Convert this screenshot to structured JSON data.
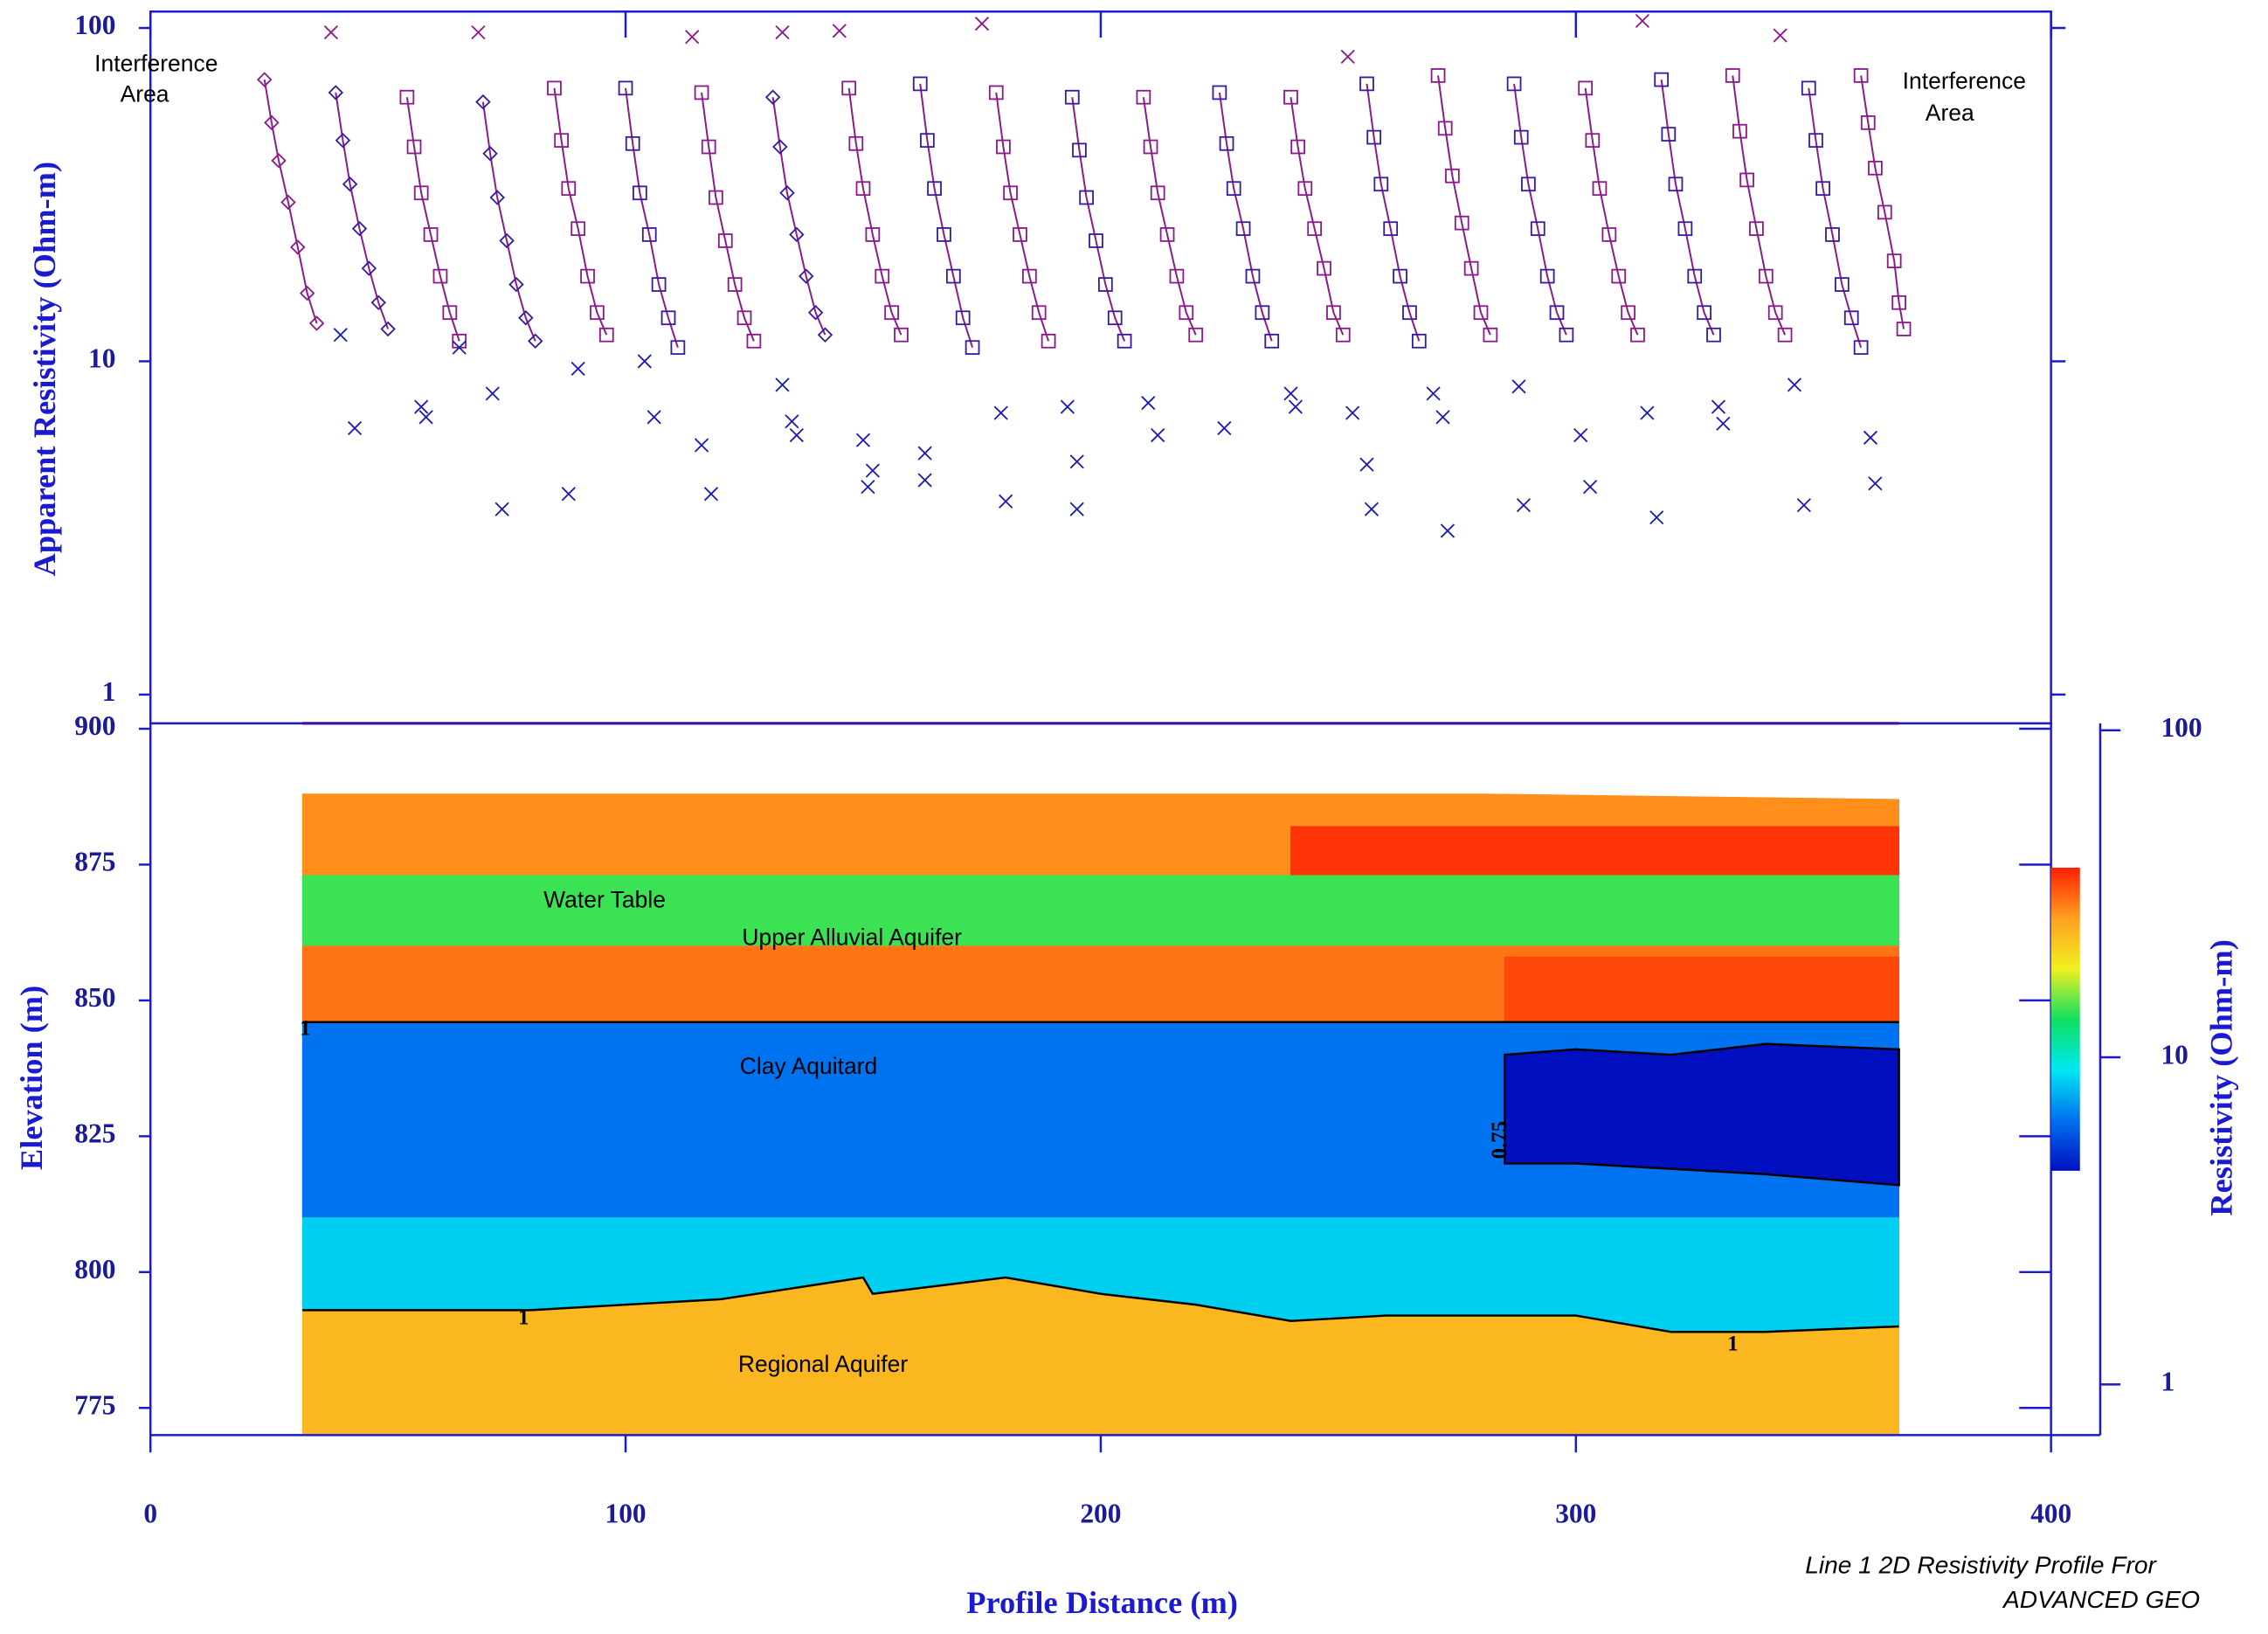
{
  "chart_data": [
    {
      "type": "scatter",
      "y_label": "Apparent Resistivity (Ohm-m)",
      "log_y": true,
      "xlim": [
        0,
        400
      ],
      "xticks": [
        0,
        100,
        200,
        300,
        400
      ],
      "ylim": [
        0.82,
        112
      ],
      "yticks": [
        1,
        10,
        100
      ],
      "annotations": [
        [
          "Interference",
          "Area"
        ],
        [
          "Interference",
          "Area"
        ]
      ],
      "line_color": "#8b1a8b",
      "series": [
        {
          "marker": "diamond",
          "color": "#8b1a8b",
          "x": [
            24,
            25.5,
            27,
            29,
            31,
            33,
            35
          ],
          "y": [
            70,
            52,
            40,
            30,
            22,
            16,
            13
          ]
        },
        {
          "marker": "diamond",
          "color": "#3a1aa0",
          "x": [
            39,
            40.5,
            42,
            44,
            46,
            48,
            50
          ],
          "y": [
            64,
            46,
            34,
            25,
            19,
            15,
            12.5
          ]
        },
        {
          "marker": "square",
          "color": "#8b1a8b",
          "x": [
            54,
            55.5,
            57,
            59,
            61,
            63,
            65
          ],
          "y": [
            62,
            44,
            32,
            24,
            18,
            14,
            11.5
          ]
        },
        {
          "marker": "diamond",
          "color": "#3a1aa0",
          "x": [
            70,
            71.5,
            73,
            75,
            77,
            79,
            81
          ],
          "y": [
            60,
            42,
            31,
            23,
            17,
            13.5,
            11.5
          ]
        },
        {
          "marker": "square",
          "color": "#8b1a8b",
          "x": [
            85,
            86.5,
            88,
            90,
            92,
            94,
            96
          ],
          "y": [
            66,
            46,
            33,
            25,
            18,
            14,
            12
          ]
        },
        {
          "marker": "square",
          "color": "#3a1aa0",
          "x": [
            100,
            101.5,
            103,
            105,
            107,
            109,
            111
          ],
          "y": [
            66,
            45,
            32,
            24,
            17,
            13.5,
            11
          ]
        },
        {
          "marker": "square",
          "color": "#8b1a8b",
          "x": [
            116,
            117.5,
            119,
            121,
            123,
            125,
            127
          ],
          "y": [
            64,
            44,
            31,
            23,
            17,
            13.5,
            11.5
          ]
        },
        {
          "marker": "diamond",
          "color": "#3a1aa0",
          "x": [
            131,
            132.5,
            134,
            136,
            138,
            140,
            142
          ],
          "y": [
            62,
            44,
            32,
            24,
            18,
            14,
            12
          ]
        },
        {
          "marker": "square",
          "color": "#8b1a8b",
          "x": [
            147,
            148.5,
            150,
            152,
            154,
            156,
            158
          ],
          "y": [
            66,
            45,
            33,
            24,
            18,
            14,
            12
          ]
        },
        {
          "marker": "square",
          "color": "#3a1aa0",
          "x": [
            162,
            163.5,
            165,
            167,
            169,
            171,
            173
          ],
          "y": [
            68,
            46,
            33,
            24,
            18,
            13.5,
            11
          ]
        },
        {
          "marker": "square",
          "color": "#8b1a8b",
          "x": [
            178,
            179.5,
            181,
            183,
            185,
            187,
            189
          ],
          "y": [
            64,
            44,
            32,
            24,
            18,
            14,
            11.5
          ]
        },
        {
          "marker": "square",
          "color": "#3a1aa0",
          "x": [
            194,
            195.5,
            197,
            199,
            201,
            203,
            205
          ],
          "y": [
            62,
            43,
            31,
            23,
            17,
            13.5,
            11.5
          ]
        },
        {
          "marker": "square",
          "color": "#8b1a8b",
          "x": [
            209,
            210.5,
            212,
            214,
            216,
            218,
            220
          ],
          "y": [
            62,
            44,
            32,
            24,
            18,
            14,
            12
          ]
        },
        {
          "marker": "square",
          "color": "#3a1aa0",
          "x": [
            225,
            226.5,
            228,
            230,
            232,
            234,
            236
          ],
          "y": [
            64,
            45,
            33,
            25,
            18,
            14,
            11.5
          ]
        },
        {
          "marker": "square",
          "color": "#8b1a8b",
          "x": [
            240,
            241.5,
            243,
            245,
            247,
            249,
            251
          ],
          "y": [
            62,
            44,
            33,
            25,
            19,
            14,
            12
          ]
        },
        {
          "marker": "square",
          "color": "#3a1aa0",
          "x": [
            256,
            257.5,
            259,
            261,
            263,
            265,
            267
          ],
          "y": [
            68,
            47,
            34,
            25,
            18,
            14,
            11.5
          ]
        },
        {
          "marker": "square",
          "color": "#8b1a8b",
          "x": [
            271,
            272.5,
            274,
            276,
            278,
            280,
            282
          ],
          "y": [
            72,
            50,
            36,
            26,
            19,
            14,
            12
          ]
        },
        {
          "marker": "square",
          "color": "#3a1aa0",
          "x": [
            287,
            288.5,
            290,
            292,
            294,
            296,
            298
          ],
          "y": [
            68,
            47,
            34,
            25,
            18,
            14,
            12
          ]
        },
        {
          "marker": "square",
          "color": "#8b1a8b",
          "x": [
            302,
            303.5,
            305,
            307,
            309,
            311,
            313
          ],
          "y": [
            66,
            46,
            33,
            24,
            18,
            14,
            12
          ]
        },
        {
          "marker": "square",
          "color": "#3a1aa0",
          "x": [
            318,
            319.5,
            321,
            323,
            325,
            327,
            329
          ],
          "y": [
            70,
            48,
            34,
            25,
            18,
            14,
            12
          ]
        },
        {
          "marker": "square",
          "color": "#8b1a8b",
          "x": [
            333,
            334.5,
            336,
            338,
            340,
            342,
            344
          ],
          "y": [
            72,
            49,
            35,
            25,
            18,
            14,
            12
          ]
        },
        {
          "marker": "square",
          "color": "#3a1aa0",
          "x": [
            349,
            350.5,
            352,
            354,
            356,
            358,
            360
          ],
          "y": [
            66,
            46,
            33,
            24,
            17,
            13.5,
            11
          ]
        },
        {
          "marker": "square",
          "color": "#8b1a8b",
          "x": [
            360,
            361.5,
            363,
            365,
            367,
            368,
            369
          ],
          "y": [
            72,
            52,
            38,
            28,
            20,
            15,
            12.5
          ]
        },
        {
          "marker": "x",
          "color": "#1c1cb0",
          "line": false,
          "x": [
            40,
            43,
            57,
            58,
            65,
            74,
            72,
            88,
            90,
            104,
            106,
            116,
            118,
            133,
            135,
            136,
            150,
            151,
            152,
            163,
            163,
            179,
            180,
            193,
            195,
            195,
            210,
            212,
            226,
            240,
            241,
            253,
            256,
            257,
            270,
            272,
            273,
            288,
            289,
            301,
            303,
            315,
            317,
            330,
            331,
            346,
            348,
            362,
            363
          ],
          "y": [
            12,
            6.3,
            7.3,
            6.8,
            11,
            3.6,
            8,
            4,
            9.5,
            10,
            6.8,
            5.6,
            4,
            8.5,
            6.6,
            6,
            5.8,
            4.2,
            4.7,
            5.3,
            4.4,
            7,
            3.8,
            7.3,
            5,
            3.6,
            7.5,
            6,
            6.3,
            8,
            7.3,
            7,
            4.9,
            3.6,
            8,
            6.8,
            3.1,
            8.4,
            3.7,
            6,
            4.2,
            7,
            3.4,
            7.3,
            6.5,
            8.5,
            3.7,
            5.9,
            4.3
          ]
        },
        {
          "marker": "x",
          "color": "#8b1a8b",
          "line": false,
          "x": [
            38,
            69,
            114,
            133,
            145,
            175,
            252,
            314,
            343
          ],
          "y": [
            97,
            97,
            94,
            97,
            98,
            103,
            82,
            105,
            95
          ]
        }
      ]
    },
    {
      "type": "section",
      "x_label": "Profile Distance (m)",
      "y_label": "Elevation (m)",
      "xlim": [
        0,
        400
      ],
      "xticks": [
        0,
        100,
        200,
        300,
        400
      ],
      "ylim": [
        770,
        901
      ],
      "yticks": [
        775,
        800,
        825,
        850,
        875,
        900
      ],
      "annotations": [
        "Water Table",
        "Upper Alluvial Aquifer",
        "Clay Aquitard",
        "Regional Aquifer",
        "1",
        "1",
        "1",
        "0.75"
      ],
      "layers": [
        {
          "resistivity": 28,
          "x": [
            32,
            120,
            200,
            280,
            368
          ],
          "top": [
            888,
            888,
            888,
            888,
            887
          ],
          "bottom": [
            873,
            873,
            873,
            873,
            873
          ]
        },
        {
          "resistivity": 36,
          "x": [
            240,
            290,
            368
          ],
          "top": [
            882,
            882,
            882
          ],
          "bottom": [
            870,
            870,
            872
          ]
        },
        {
          "resistivity": 14,
          "x": [
            32,
            368
          ],
          "top": [
            873,
            873
          ],
          "bottom": [
            860,
            860
          ]
        },
        {
          "resistivity": 30,
          "x": [
            32,
            368
          ],
          "top": [
            860,
            860
          ],
          "bottom": [
            846,
            846
          ]
        },
        {
          "resistivity": 34,
          "x": [
            285,
            368
          ],
          "top": [
            858,
            858
          ],
          "bottom": [
            846,
            846
          ]
        },
        {
          "resistivity": 6.5,
          "outline": "top",
          "x": [
            32,
            100,
            200,
            280,
            368
          ],
          "top": [
            846,
            846,
            846,
            846,
            846
          ],
          "bottom": [
            810,
            810,
            810,
            810,
            810
          ]
        },
        {
          "resistivity": 8.5,
          "x": [
            32,
            80,
            120,
            150,
            152,
            180,
            200,
            220,
            240,
            260,
            300,
            320,
            340,
            368
          ],
          "top": [
            810,
            810,
            810,
            810,
            810,
            810,
            810,
            810,
            810,
            810,
            810,
            810,
            810,
            810
          ],
          "bottom": [
            793,
            793,
            795,
            799,
            796,
            799,
            796,
            794,
            791,
            792,
            792,
            789,
            789,
            790
          ]
        },
        {
          "resistivity": 24,
          "outline": "top",
          "x": [
            32,
            80,
            120,
            150,
            152,
            180,
            200,
            220,
            240,
            260,
            300,
            320,
            340,
            368
          ],
          "top": [
            793,
            793,
            795,
            799,
            796,
            799,
            796,
            794,
            791,
            792,
            792,
            789,
            789,
            790
          ],
          "bottom": [
            770,
            770,
            770,
            770,
            770,
            770,
            770,
            770,
            770,
            770,
            770,
            770,
            770,
            770
          ]
        },
        {
          "resistivity": 4.2,
          "outline": "all",
          "x": [
            285,
            300,
            320,
            340,
            368
          ],
          "top": [
            840,
            841,
            840,
            842,
            841
          ],
          "bottom": [
            820,
            820,
            819,
            818,
            816
          ]
        }
      ],
      "colorbar": {
        "label": "Resistivity (Ohm-m)",
        "log": true,
        "ylim": [
          0.7,
          105
        ],
        "yticks": [
          1,
          10,
          100
        ],
        "clim": [
          4.5,
          38
        ],
        "colormap": [
          "#0010c0",
          "#0070f0",
          "#00e8f0",
          "#10e060",
          "#f0f020",
          "#ffa020",
          "#ff2000"
        ]
      }
    }
  ],
  "footer": [
    "Line 1 2D Resistivity Profile Fror",
    "ADVANCED GEO"
  ]
}
